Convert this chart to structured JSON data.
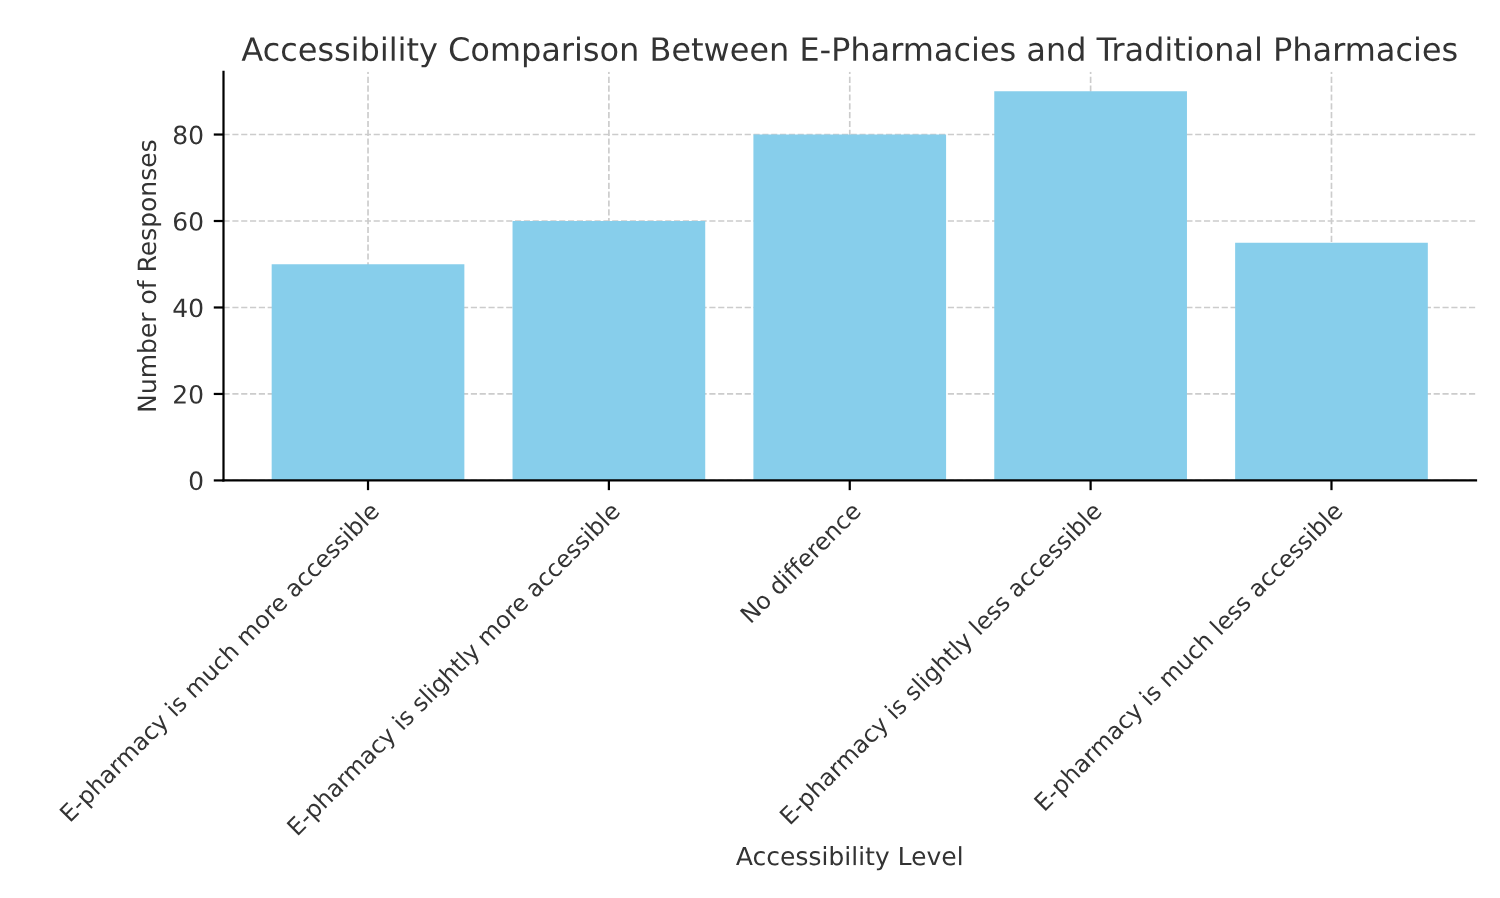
{
  "chart_data": {
    "type": "bar",
    "title": "Accessibility Comparison Between E-Pharmacies and Traditional Pharmacies",
    "xlabel": "Accessibility Level",
    "ylabel": "Number of Responses",
    "categories": [
      "E-pharmacy is much more accessible",
      "E-pharmacy is slightly more accessible",
      "No difference",
      "E-pharmacy is slightly less accessible",
      "E-pharmacy is much less accessible"
    ],
    "values": [
      50,
      60,
      80,
      90,
      55
    ],
    "color": "#87ceeb",
    "ylim": [
      0,
      94.5
    ],
    "yticks": [
      0,
      20,
      40,
      60,
      80
    ],
    "grid": true
  }
}
